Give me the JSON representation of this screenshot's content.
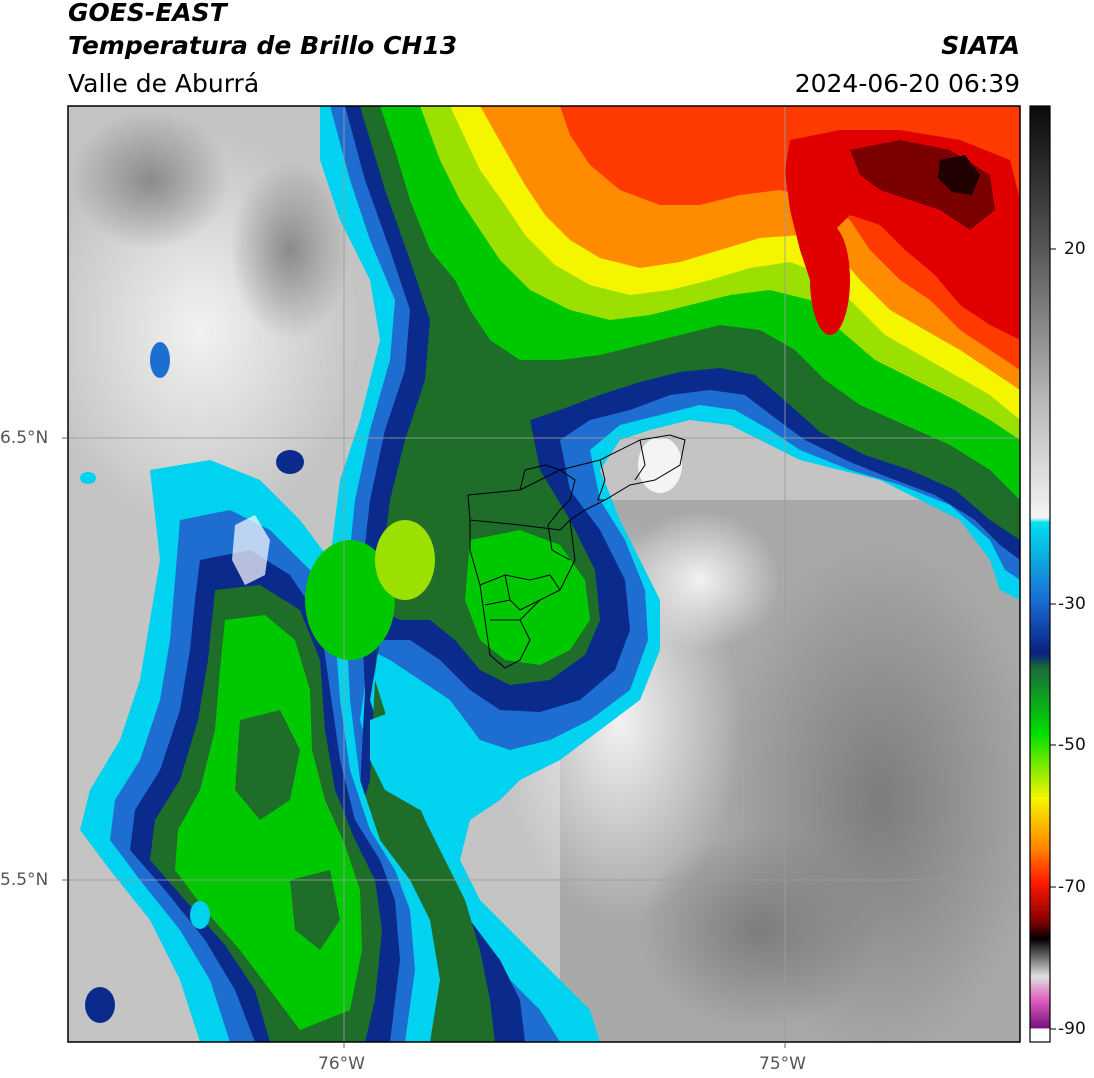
{
  "header": {
    "satellite": "GOES-EAST",
    "product": "Temperatura de Brillo CH13",
    "region": "Valle de Aburrá",
    "agency": "SIATA",
    "timestamp": "2024-06-20 06:39"
  },
  "map": {
    "lat_labels": [
      "6.5°N",
      "5.5°N"
    ],
    "lon_labels": [
      "76°W",
      "75°W"
    ]
  },
  "colorbar": {
    "tick_labels": [
      "20",
      "-30",
      "-50",
      "-70",
      "-90"
    ]
  },
  "colors": {
    "cloud_cold_red": "#e00000",
    "cloud_orange": "#ff8c00",
    "cloud_yellow": "#f5f500",
    "cloud_green": "#00c800",
    "cloud_dark_green": "#1e6e2a",
    "cloud_navy": "#0a2a8c",
    "cloud_blue": "#1e6ed2",
    "cloud_cyan": "#00d2f0",
    "clear_gray": "#9a9a9a"
  }
}
